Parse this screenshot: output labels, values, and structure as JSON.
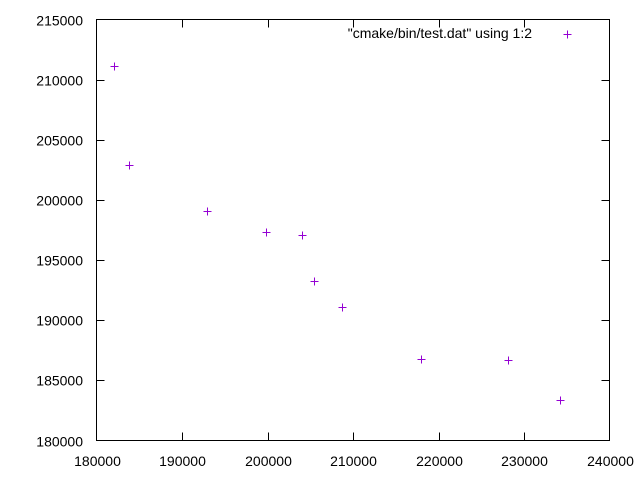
{
  "chart_data": {
    "type": "scatter",
    "xlim": [
      180000,
      240000
    ],
    "ylim": [
      180000,
      215000
    ],
    "x_ticks": [
      180000,
      190000,
      200000,
      210000,
      220000,
      230000,
      240000
    ],
    "y_ticks": [
      180000,
      185000,
      190000,
      195000,
      200000,
      205000,
      210000,
      215000
    ],
    "x_tick_labels": [
      "180000",
      "190000",
      "200000",
      "210000",
      "220000",
      "230000",
      "240000"
    ],
    "y_tick_labels": [
      "180000",
      "185000",
      "190000",
      "195000",
      "200000",
      "205000",
      "210000",
      "215000"
    ],
    "grid": false,
    "legend_position": "top-right",
    "marker": "+",
    "series": [
      {
        "name": "\"cmake/bin/test.dat\" using 1:2",
        "color": "#9400d3",
        "points": [
          {
            "x": 182000,
            "y": 211100
          },
          {
            "x": 183800,
            "y": 202900
          },
          {
            "x": 192900,
            "y": 199100
          },
          {
            "x": 199800,
            "y": 197300
          },
          {
            "x": 204000,
            "y": 197100
          },
          {
            "x": 205400,
            "y": 193300
          },
          {
            "x": 208700,
            "y": 191100
          },
          {
            "x": 217900,
            "y": 186800
          },
          {
            "x": 228100,
            "y": 186700
          },
          {
            "x": 234200,
            "y": 183400
          }
        ]
      }
    ]
  }
}
